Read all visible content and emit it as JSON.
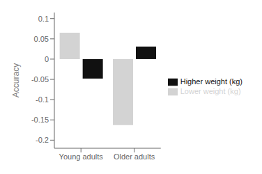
{
  "chart_data": {
    "type": "bar",
    "categories": [
      "Young adults",
      "Older adults"
    ],
    "series": [
      {
        "name": "Lower weight (kg)",
        "color": "#d3d3d3",
        "values": [
          0.065,
          -0.163
        ]
      },
      {
        "name": "Higher weight (kg)",
        "color": "#111111",
        "values": [
          -0.048,
          0.031
        ]
      }
    ],
    "ylabel": "Accuracy",
    "ylim": [
      -0.22,
      0.115
    ],
    "yticks": [
      -0.2,
      -0.15,
      -0.1,
      -0.05,
      0,
      0.05,
      0.1
    ],
    "legend": "right",
    "grid": false
  }
}
